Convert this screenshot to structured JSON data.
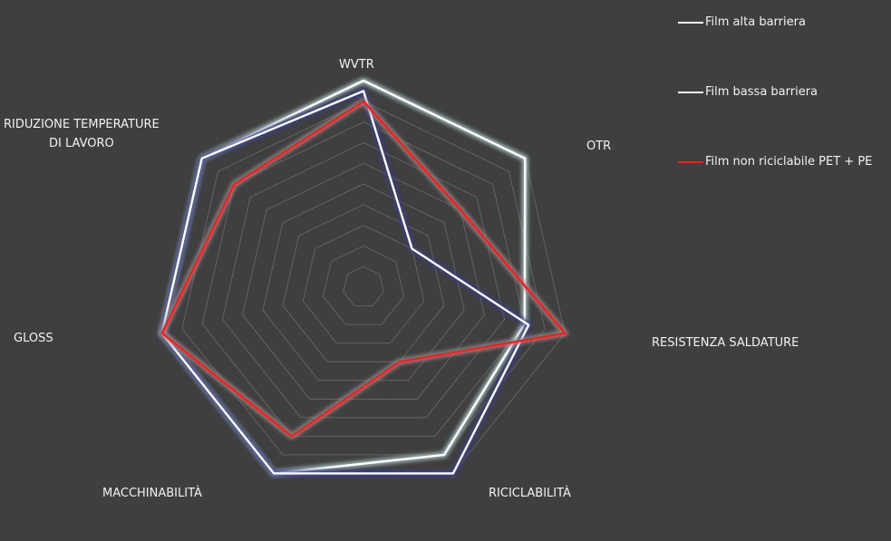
{
  "chart_data": {
    "type": "radar",
    "categories": [
      "WVTR",
      "OTR",
      "RESISTENZA SALDATURE",
      "RICICLABILITÀ",
      "MACCHINABILITÀ",
      "GLOSS",
      "RIDUZIONE TEMPERATURE\nDI LAVORO"
    ],
    "rlim": [
      0,
      10
    ],
    "grid": true,
    "legend_position": "top-right",
    "series": [
      {
        "name": "Film alta barriera",
        "values": [
          10,
          10,
          8,
          9,
          10,
          10,
          10
        ],
        "color": "#ffffff",
        "glow": "#a9c3c3"
      },
      {
        "name": "Film bassa barriera",
        "values": [
          9.5,
          3,
          8.2,
          10,
          10,
          10,
          10
        ],
        "color": "#ffffff",
        "glow": "#3a3f8c"
      },
      {
        "name": "Film non riciclabile PET + PE",
        "values": [
          9,
          6,
          10,
          4,
          8,
          10,
          8
        ],
        "color": "#ff1a1a",
        "glow": "#9a8a8a"
      }
    ],
    "gridline_color": "#6a6a6a",
    "label_color": "#f2f2f2"
  }
}
